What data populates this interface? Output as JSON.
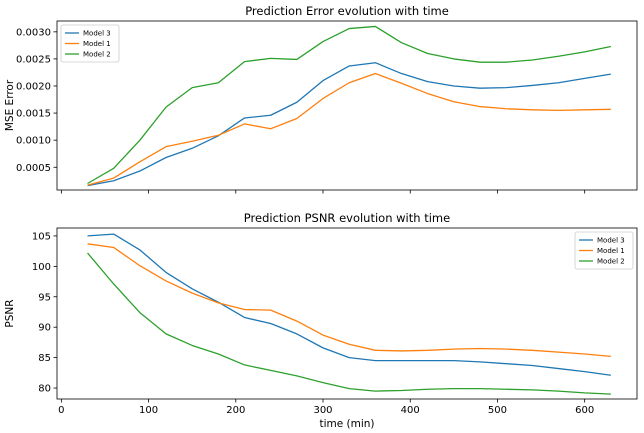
{
  "chart_data": [
    {
      "type": "line",
      "title": "Prediction Error evolution with time",
      "xlabel": "",
      "ylabel": "MSE Error",
      "xlim": [
        -5,
        660
      ],
      "ylim": [
        8e-05,
        0.0032
      ],
      "xticks": [
        0,
        100,
        200,
        300,
        400,
        500,
        600
      ],
      "yticks": [
        0.0005,
        0.001,
        0.0015,
        0.002,
        0.0025,
        0.003
      ],
      "ytick_labels": [
        "0.0005",
        "0.0010",
        "0.0015",
        "0.0020",
        "0.0025",
        "0.0030"
      ],
      "legend_position": "upper left",
      "grid": false,
      "x": [
        30,
        60,
        90,
        120,
        150,
        180,
        210,
        240,
        270,
        300,
        330,
        360,
        390,
        420,
        450,
        480,
        510,
        540,
        570,
        600,
        630
      ],
      "series": [
        {
          "name": "Model 3",
          "color": "#1f77b4",
          "values": [
            0.00016,
            0.00025,
            0.00043,
            0.00068,
            0.00085,
            0.00108,
            0.00141,
            0.00146,
            0.0017,
            0.0021,
            0.00237,
            0.00243,
            0.00223,
            0.00208,
            0.002,
            0.00196,
            0.00197,
            0.00201,
            0.00206,
            0.00214,
            0.00222
          ]
        },
        {
          "name": "Model 1",
          "color": "#ff7f0e",
          "values": [
            0.00017,
            0.0003,
            0.0006,
            0.00088,
            0.00098,
            0.00109,
            0.0013,
            0.00121,
            0.0014,
            0.00177,
            0.00206,
            0.00223,
            0.00205,
            0.00186,
            0.00171,
            0.00162,
            0.00158,
            0.00156,
            0.00155,
            0.00156,
            0.00157
          ]
        },
        {
          "name": "Model 2",
          "color": "#2ca02c",
          "values": [
            0.0002,
            0.00048,
            0.001,
            0.00161,
            0.00197,
            0.00206,
            0.00245,
            0.00251,
            0.00249,
            0.00282,
            0.00306,
            0.0031,
            0.0028,
            0.0026,
            0.0025,
            0.00244,
            0.00244,
            0.00248,
            0.00255,
            0.00263,
            0.00273
          ]
        }
      ]
    },
    {
      "type": "line",
      "title": "Prediction PSNR evolution with time",
      "xlabel": "time (min)",
      "ylabel": "PSNR",
      "xlim": [
        -5,
        660
      ],
      "ylim": [
        78.2,
        106.3
      ],
      "xticks": [
        0,
        100,
        200,
        300,
        400,
        500,
        600
      ],
      "yticks": [
        80,
        85,
        90,
        95,
        100,
        105
      ],
      "ytick_labels": [
        "80",
        "85",
        "90",
        "95",
        "100",
        "105"
      ],
      "legend_position": "upper right",
      "grid": false,
      "x": [
        30,
        60,
        90,
        120,
        150,
        180,
        210,
        240,
        270,
        300,
        330,
        360,
        390,
        420,
        450,
        480,
        510,
        540,
        570,
        600,
        630
      ],
      "series": [
        {
          "name": "Model 3",
          "color": "#1f77b4",
          "values": [
            105.0,
            105.3,
            102.7,
            99.0,
            96.3,
            94.1,
            91.6,
            90.6,
            88.9,
            86.6,
            85.0,
            84.5,
            84.5,
            84.5,
            84.5,
            84.3,
            84.0,
            83.7,
            83.2,
            82.7,
            82.1
          ]
        },
        {
          "name": "Model 1",
          "color": "#ff7f0e",
          "values": [
            103.7,
            103.1,
            100.1,
            97.6,
            95.6,
            94.0,
            92.9,
            92.8,
            91.0,
            88.7,
            87.2,
            86.2,
            86.1,
            86.2,
            86.4,
            86.5,
            86.4,
            86.2,
            85.9,
            85.6,
            85.2
          ]
        },
        {
          "name": "Model 2",
          "color": "#2ca02c",
          "values": [
            102.2,
            97.1,
            92.4,
            88.9,
            87.0,
            85.6,
            83.8,
            82.9,
            82.0,
            80.9,
            79.9,
            79.5,
            79.6,
            79.8,
            79.9,
            79.9,
            79.8,
            79.7,
            79.5,
            79.2,
            79.0
          ]
        }
      ]
    }
  ]
}
